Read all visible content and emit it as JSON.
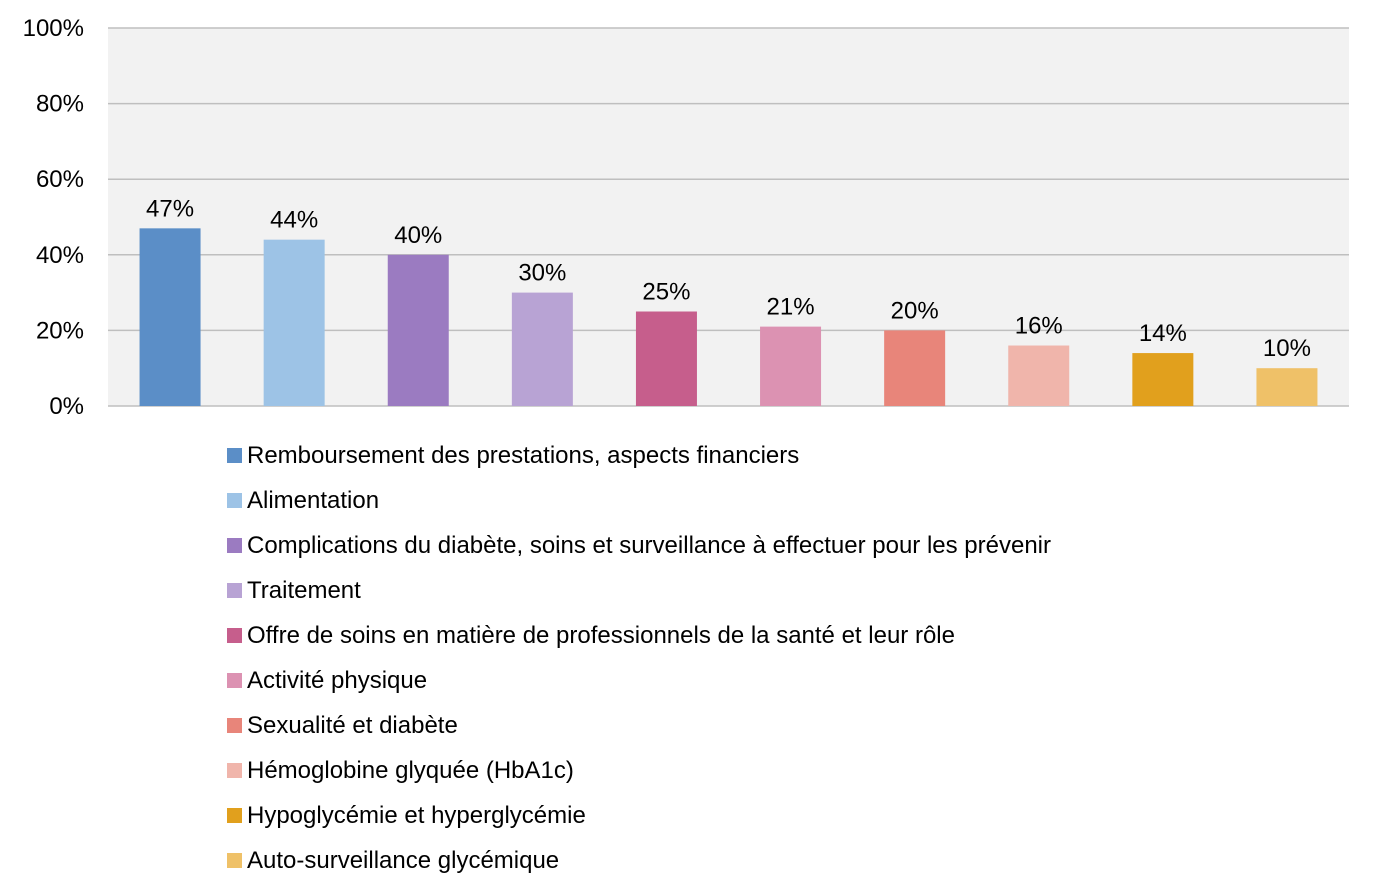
{
  "chart_data": {
    "type": "bar",
    "title": "",
    "xlabel": "",
    "ylabel": "",
    "ylim": [
      0,
      100
    ],
    "y_ticks": [
      {
        "value": 0,
        "label": "0%"
      },
      {
        "value": 20,
        "label": "20%"
      },
      {
        "value": 40,
        "label": "40%"
      },
      {
        "value": 60,
        "label": "60%"
      },
      {
        "value": 80,
        "label": "80%"
      },
      {
        "value": 100,
        "label": "100%"
      }
    ],
    "grid": true,
    "legend_position": "bottom",
    "categories": [
      "Remboursement des prestations, aspects financiers",
      "Alimentation",
      "Complications du diabète, soins et surveillance à effectuer pour les prévenir",
      "Traitement",
      "Offre de soins en matière de professionnels de la santé et leur rôle",
      "Activité physique",
      "Sexualité et diabète",
      "Hémoglobine glyquée (HbA1c)",
      "Hypoglycémie et hyperglycémie",
      "Auto-surveillance glycémique"
    ],
    "values": [
      47,
      44,
      40,
      30,
      25,
      21,
      20,
      16,
      14,
      10
    ],
    "value_labels": [
      "47%",
      "44%",
      "40%",
      "30%",
      "25%",
      "21%",
      "20%",
      "16%",
      "14%",
      "10%"
    ],
    "colors": [
      "#5b8ec7",
      "#9dc3e6",
      "#9b7bc1",
      "#b8a3d4",
      "#c65e8c",
      "#dc92b2",
      "#e8857a",
      "#f0b5ab",
      "#e1a01d",
      "#efc168"
    ],
    "plot_background": "#f2f2f2",
    "grid_color": "#bfbfbf"
  }
}
